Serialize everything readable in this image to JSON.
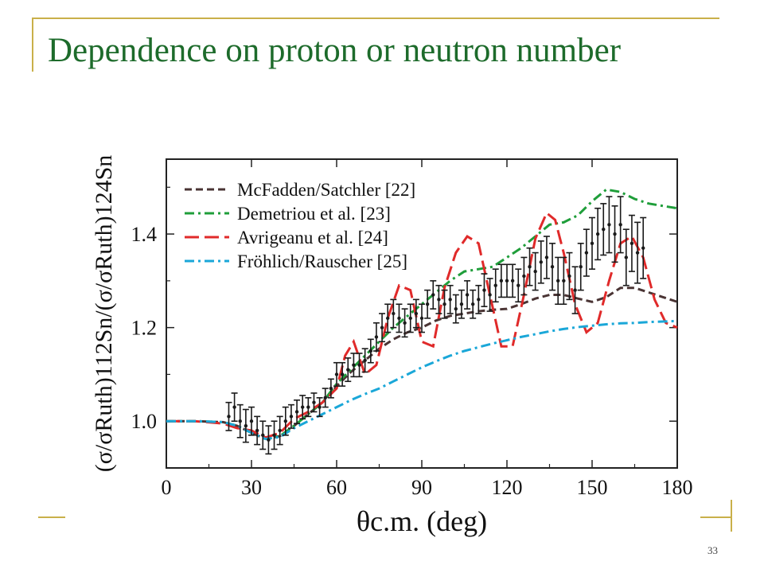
{
  "slide": {
    "title": "Dependence on proton or neutron number",
    "page_number": "33",
    "accent_color": "#1d6b2b",
    "decor_color": "#c9b04a"
  },
  "chart_data": {
    "type": "line",
    "title": "",
    "xlabel": "θc.m. (deg)",
    "ylabel": "(σ/σRuth)112Sn/(σ/σRuth)124Sn",
    "xlim": [
      0,
      180
    ],
    "ylim": [
      0.9,
      1.56
    ],
    "xticks": [
      0,
      30,
      60,
      90,
      120,
      150,
      180
    ],
    "yticks": [
      1.0,
      1.2,
      1.4
    ],
    "ytick_labels": [
      "1.0",
      "1.2",
      "1.4"
    ],
    "legend_position": "top-left",
    "series": [
      {
        "name": "McFadden/Satchler [22]",
        "color": "#4a3434",
        "dash": "dashed",
        "x": [
          0,
          10,
          20,
          25,
          30,
          35,
          40,
          45,
          50,
          55,
          60,
          65,
          70,
          75,
          80,
          85,
          90,
          95,
          100,
          105,
          110,
          115,
          120,
          125,
          130,
          135,
          140,
          145,
          150,
          155,
          160,
          165,
          170,
          175,
          180
        ],
        "y": [
          1.0,
          1.0,
          0.998,
          0.99,
          0.975,
          0.962,
          0.968,
          0.99,
          1.015,
          1.04,
          1.075,
          1.105,
          1.13,
          1.155,
          1.175,
          1.19,
          1.2,
          1.215,
          1.225,
          1.23,
          1.235,
          1.238,
          1.24,
          1.25,
          1.262,
          1.27,
          1.27,
          1.262,
          1.255,
          1.265,
          1.285,
          1.285,
          1.275,
          1.265,
          1.255
        ]
      },
      {
        "name": "Demetriou et al. [23]",
        "color": "#1f9e3a",
        "dash": "dash-dot",
        "x": [
          0,
          10,
          20,
          25,
          30,
          35,
          40,
          45,
          50,
          55,
          60,
          65,
          70,
          75,
          80,
          85,
          90,
          95,
          100,
          105,
          110,
          115,
          120,
          125,
          130,
          135,
          140,
          145,
          150,
          155,
          160,
          165,
          170,
          175,
          180
        ],
        "y": [
          1.0,
          1.0,
          0.998,
          0.99,
          0.975,
          0.962,
          0.968,
          0.99,
          1.015,
          1.04,
          1.08,
          1.11,
          1.14,
          1.17,
          1.2,
          1.225,
          1.25,
          1.275,
          1.3,
          1.32,
          1.325,
          1.33,
          1.35,
          1.37,
          1.395,
          1.42,
          1.425,
          1.44,
          1.47,
          1.495,
          1.49,
          1.475,
          1.465,
          1.46,
          1.455
        ]
      },
      {
        "name": "Avrigeanu et al. [24]",
        "color": "#e02a2a",
        "dash": "long-dash",
        "x": [
          0,
          10,
          20,
          25,
          30,
          35,
          40,
          45,
          50,
          55,
          60,
          63,
          66,
          70,
          74,
          78,
          82,
          86,
          90,
          94,
          98,
          102,
          106,
          110,
          114,
          118,
          122,
          126,
          130,
          134,
          137,
          140,
          144,
          148,
          152,
          156,
          160,
          164,
          168,
          172,
          176,
          180
        ],
        "y": [
          1.0,
          1.0,
          0.995,
          0.985,
          0.98,
          0.965,
          0.975,
          1.005,
          1.02,
          1.04,
          1.07,
          1.14,
          1.17,
          1.1,
          1.12,
          1.22,
          1.29,
          1.28,
          1.17,
          1.16,
          1.285,
          1.36,
          1.395,
          1.38,
          1.27,
          1.16,
          1.16,
          1.27,
          1.39,
          1.445,
          1.43,
          1.36,
          1.25,
          1.19,
          1.21,
          1.3,
          1.38,
          1.395,
          1.35,
          1.26,
          1.21,
          1.2
        ]
      },
      {
        "name": "Fröhlich/Rauscher [25]",
        "color": "#1aa7d8",
        "dash": "dash-dot",
        "x": [
          0,
          10,
          20,
          25,
          30,
          35,
          40,
          45,
          50,
          55,
          60,
          65,
          70,
          75,
          80,
          85,
          90,
          95,
          100,
          105,
          110,
          115,
          120,
          125,
          130,
          135,
          140,
          145,
          150,
          155,
          160,
          165,
          170,
          175,
          180
        ],
        "y": [
          1.0,
          1.0,
          0.998,
          0.99,
          0.975,
          0.962,
          0.966,
          0.985,
          1.0,
          1.015,
          1.03,
          1.045,
          1.058,
          1.07,
          1.085,
          1.1,
          1.115,
          1.128,
          1.14,
          1.15,
          1.158,
          1.166,
          1.173,
          1.18,
          1.186,
          1.192,
          1.197,
          1.201,
          1.204,
          1.207,
          1.209,
          1.21,
          1.212,
          1.213,
          1.214
        ]
      }
    ],
    "data_points": {
      "name": "",
      "color": "#1a1a1a",
      "x": [
        22,
        24,
        26,
        28,
        30,
        32,
        34,
        36,
        38,
        40,
        42,
        44,
        46,
        48,
        50,
        52,
        54,
        56,
        58,
        60,
        62,
        64,
        66,
        68,
        70,
        72,
        74,
        76,
        78,
        80,
        82,
        84,
        86,
        88,
        90,
        92,
        94,
        96,
        98,
        100,
        102,
        104,
        106,
        108,
        110,
        112,
        114,
        116,
        118,
        120,
        122,
        124,
        126,
        128,
        130,
        132,
        134,
        136,
        138,
        140,
        142,
        144,
        146,
        148,
        150,
        152,
        154,
        156,
        158,
        160,
        162,
        164,
        166,
        168
      ],
      "y": [
        1.01,
        1.03,
        1.0,
        0.99,
        1.0,
        0.98,
        0.97,
        0.96,
        0.97,
        0.98,
        1.0,
        1.01,
        1.02,
        1.03,
        1.03,
        1.04,
        1.03,
        1.05,
        1.07,
        1.1,
        1.1,
        1.11,
        1.12,
        1.12,
        1.13,
        1.15,
        1.18,
        1.2,
        1.22,
        1.23,
        1.22,
        1.21,
        1.22,
        1.23,
        1.22,
        1.25,
        1.27,
        1.26,
        1.25,
        1.26,
        1.24,
        1.25,
        1.27,
        1.25,
        1.26,
        1.28,
        1.27,
        1.29,
        1.3,
        1.3,
        1.3,
        1.29,
        1.31,
        1.33,
        1.32,
        1.34,
        1.35,
        1.33,
        1.3,
        1.3,
        1.31,
        1.28,
        1.33,
        1.36,
        1.38,
        1.4,
        1.41,
        1.42,
        1.4,
        1.42,
        1.35,
        1.38,
        1.36,
        1.37
      ],
      "err": [
        0.03,
        0.03,
        0.035,
        0.035,
        0.03,
        0.03,
        0.03,
        0.03,
        0.03,
        0.03,
        0.03,
        0.025,
        0.025,
        0.025,
        0.02,
        0.02,
        0.02,
        0.02,
        0.02,
        0.025,
        0.025,
        0.025,
        0.025,
        0.025,
        0.025,
        0.025,
        0.03,
        0.03,
        0.03,
        0.03,
        0.03,
        0.03,
        0.03,
        0.03,
        0.03,
        0.03,
        0.03,
        0.03,
        0.03,
        0.03,
        0.03,
        0.03,
        0.03,
        0.03,
        0.03,
        0.035,
        0.035,
        0.035,
        0.035,
        0.035,
        0.035,
        0.035,
        0.04,
        0.04,
        0.04,
        0.045,
        0.045,
        0.05,
        0.05,
        0.05,
        0.05,
        0.05,
        0.05,
        0.05,
        0.055,
        0.055,
        0.055,
        0.06,
        0.06,
        0.06,
        0.06,
        0.06,
        0.065,
        0.065
      ]
    }
  }
}
